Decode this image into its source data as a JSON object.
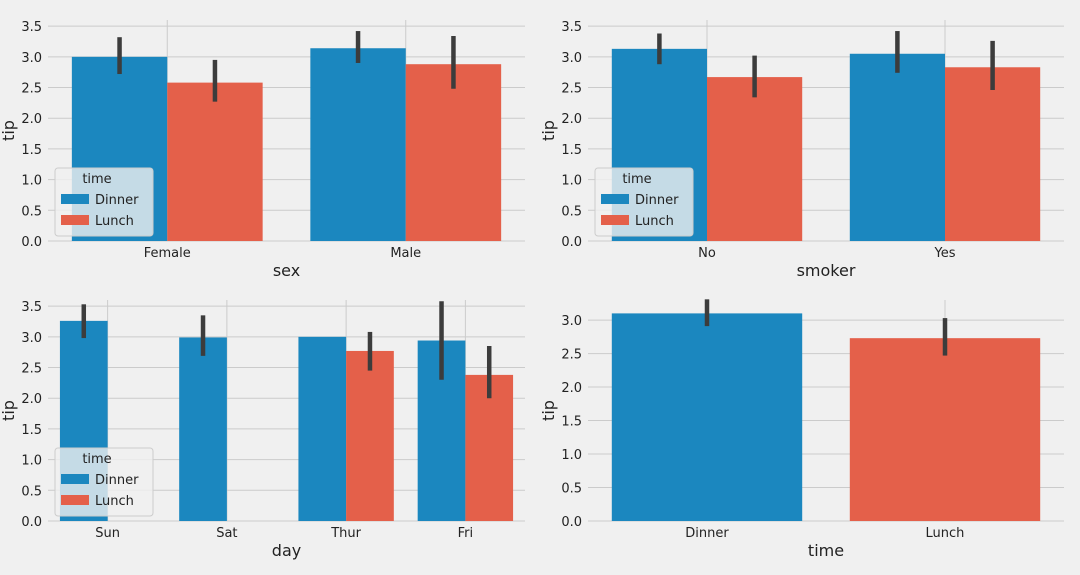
{
  "colors": {
    "Dinner": "#1b87bf",
    "Lunch": "#e4604a",
    "errorbar": "#3c3c3c",
    "grid": "#cbcbcb"
  },
  "chart_data": [
    {
      "type": "bar",
      "xlabel": "sex",
      "ylabel": "tip",
      "ylim": [
        0,
        3.6
      ],
      "yticks": [
        "0.0",
        "0.5",
        "1.0",
        "1.5",
        "2.0",
        "2.5",
        "3.0",
        "3.5"
      ],
      "grid": true,
      "categories": [
        "Female",
        "Male"
      ],
      "legend": {
        "title": "time",
        "placement": "lower-left",
        "entries": [
          "Dinner",
          "Lunch"
        ]
      },
      "series": [
        {
          "name": "Dinner",
          "values": [
            3.0,
            3.14
          ],
          "ci_low": [
            2.72,
            2.9
          ],
          "ci_high": [
            3.32,
            3.42
          ]
        },
        {
          "name": "Lunch",
          "values": [
            2.58,
            2.88
          ],
          "ci_low": [
            2.27,
            2.48
          ],
          "ci_high": [
            2.95,
            3.34
          ]
        }
      ]
    },
    {
      "type": "bar",
      "xlabel": "smoker",
      "ylabel": "tip",
      "ylim": [
        0,
        3.6
      ],
      "yticks": [
        "0.0",
        "0.5",
        "1.0",
        "1.5",
        "2.0",
        "2.5",
        "3.0",
        "3.5"
      ],
      "grid": true,
      "categories": [
        "No",
        "Yes"
      ],
      "legend": {
        "title": "time",
        "placement": "lower-left",
        "entries": [
          "Dinner",
          "Lunch"
        ]
      },
      "series": [
        {
          "name": "Dinner",
          "values": [
            3.13,
            3.05
          ],
          "ci_low": [
            2.88,
            2.74
          ],
          "ci_high": [
            3.38,
            3.42
          ]
        },
        {
          "name": "Lunch",
          "values": [
            2.67,
            2.83
          ],
          "ci_low": [
            2.34,
            2.46
          ],
          "ci_high": [
            3.02,
            3.26
          ]
        }
      ]
    },
    {
      "type": "bar",
      "xlabel": "day",
      "ylabel": "tip",
      "ylim": [
        0,
        3.6
      ],
      "yticks": [
        "0.0",
        "0.5",
        "1.0",
        "1.5",
        "2.0",
        "2.5",
        "3.0",
        "3.5"
      ],
      "grid": true,
      "categories": [
        "Sun",
        "Sat",
        "Thur",
        "Fri"
      ],
      "legend": {
        "title": "time",
        "placement": "lower-left",
        "entries": [
          "Dinner",
          "Lunch"
        ]
      },
      "series": [
        {
          "name": "Dinner",
          "values": [
            3.26,
            2.99,
            3.0,
            2.94
          ],
          "ci_low": [
            2.98,
            2.69,
            3.0,
            2.3
          ],
          "ci_high": [
            3.53,
            3.35,
            3.0,
            3.58
          ]
        },
        {
          "name": "Lunch",
          "values": [
            null,
            null,
            2.77,
            2.38
          ],
          "ci_low": [
            null,
            null,
            2.45,
            2.0
          ],
          "ci_high": [
            null,
            null,
            3.08,
            2.85
          ]
        }
      ]
    },
    {
      "type": "bar",
      "xlabel": "time",
      "ylabel": "tip",
      "ylim": [
        0,
        3.3
      ],
      "yticks": [
        "0.0",
        "0.5",
        "1.0",
        "1.5",
        "2.0",
        "2.5",
        "3.0"
      ],
      "grid": true,
      "categories": [
        "Dinner",
        "Lunch"
      ],
      "series": [
        {
          "values": [
            3.1,
            2.73
          ],
          "ci_low": [
            2.91,
            2.47
          ],
          "ci_high": [
            3.31,
            3.03
          ]
        }
      ]
    }
  ]
}
